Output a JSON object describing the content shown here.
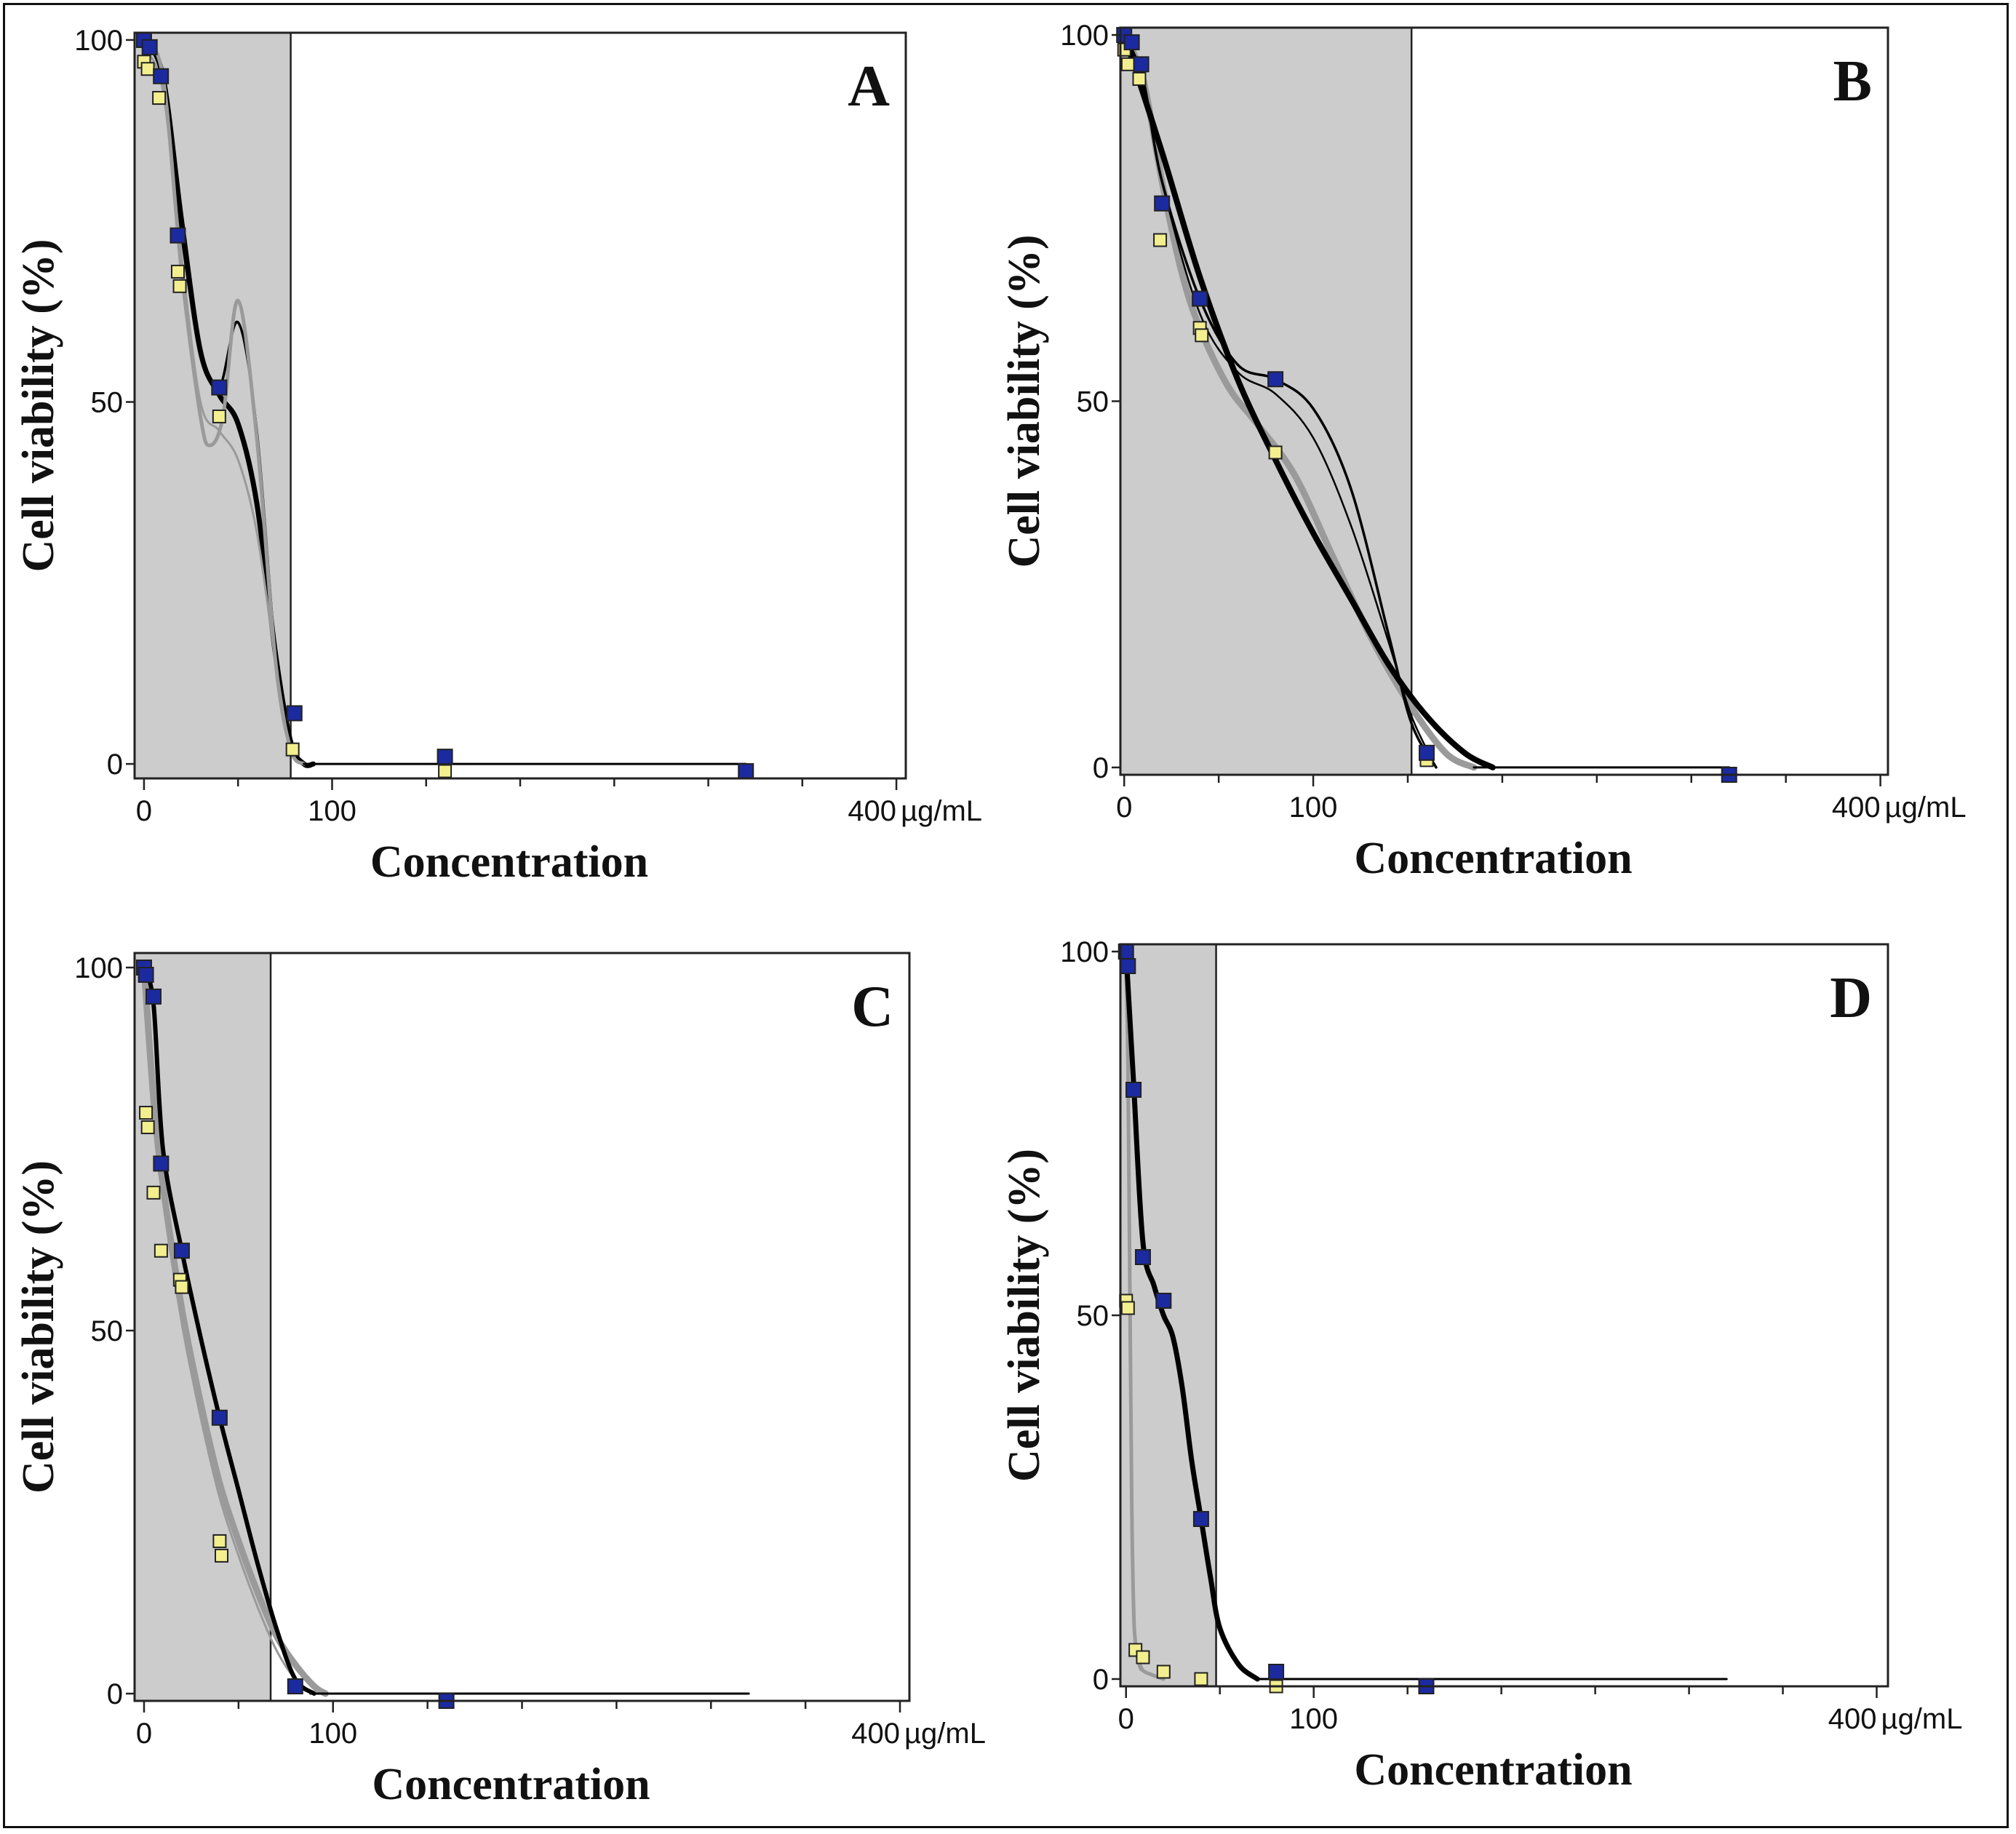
{
  "figure": {
    "unit_label": "µg/mL",
    "line_colors": {
      "dark": "#000000",
      "grey": "#9a9a9a"
    },
    "marker_colors": {
      "blue": "#1c2aa0",
      "yellow": "#f3ef8e"
    },
    "shade_color": "#cccccc"
  },
  "chart_data": [
    {
      "type": "scatter",
      "panel_label": "A",
      "xlabel": "Concentration",
      "ylabel": "Cell viability (%)",
      "xlim": [
        -5,
        405
      ],
      "ylim": [
        -2,
        101
      ],
      "x_ticks": [
        0,
        100,
        400
      ],
      "x_tick_labels": [
        "0",
        "100",
        "400"
      ],
      "y_ticks": [
        0,
        50,
        100
      ],
      "y_tick_labels": [
        "0",
        "50",
        "100"
      ],
      "shaded_region": [
        -5,
        78
      ],
      "series": [
        {
          "name": "blue",
          "x": [
            0,
            3,
            9,
            18,
            40,
            80,
            160,
            320
          ],
          "y": [
            100,
            99,
            95,
            73,
            52,
            7,
            1,
            -1
          ]
        },
        {
          "name": "yellow",
          "x": [
            0,
            2,
            8,
            18,
            19,
            40,
            79,
            160
          ],
          "y": [
            97,
            96,
            92,
            68,
            66,
            48,
            2,
            -1
          ]
        }
      ],
      "fits": [
        {
          "color": "dark",
          "width": 7,
          "x": [
            0,
            10,
            20,
            30,
            40,
            50,
            60,
            70,
            78,
            85,
            90
          ],
          "y": [
            100,
            95,
            75,
            57,
            51,
            47,
            36,
            15,
            3,
            0,
            0
          ]
        },
        {
          "color": "dark",
          "width": 3.5,
          "x": [
            0,
            10,
            20,
            30,
            40,
            50,
            60,
            70,
            78,
            85
          ],
          "y": [
            100,
            95,
            73,
            57,
            52,
            61,
            46,
            15,
            3,
            0
          ]
        },
        {
          "color": "grey",
          "width": 5,
          "x": [
            0,
            10,
            20,
            30,
            35,
            42,
            50,
            60,
            70,
            78,
            85
          ],
          "y": [
            100,
            95,
            68,
            48,
            44,
            48,
            64,
            45,
            14,
            2,
            0
          ]
        },
        {
          "color": "grey",
          "width": 3,
          "x": [
            0,
            10,
            20,
            30,
            40,
            50,
            60,
            70,
            78,
            85
          ],
          "y": [
            99,
            93,
            70,
            50,
            46,
            42,
            32,
            14,
            2,
            0
          ]
        },
        {
          "color": "dark",
          "width": 3,
          "x": [
            85,
            320
          ],
          "y": [
            0,
            0
          ]
        }
      ]
    },
    {
      "type": "scatter",
      "panel_label": "B",
      "xlabel": "Concentration",
      "ylabel": "Cell viability (%)",
      "xlim": [
        -2,
        404
      ],
      "ylim": [
        -1,
        101
      ],
      "x_ticks": [
        0,
        100,
        400
      ],
      "x_tick_labels": [
        "0",
        "100",
        "400"
      ],
      "y_ticks": [
        0,
        50,
        100
      ],
      "y_tick_labels": [
        "0",
        "50",
        "100"
      ],
      "shaded_region": [
        -2,
        152
      ],
      "series": [
        {
          "name": "blue",
          "x": [
            0,
            4,
            9,
            20,
            40,
            80,
            160,
            320
          ],
          "y": [
            100,
            99,
            96,
            77,
            64,
            53,
            2,
            -1
          ]
        },
        {
          "name": "yellow",
          "x": [
            0,
            2,
            8,
            19,
            40,
            41,
            80,
            160
          ],
          "y": [
            98,
            96,
            94,
            72,
            60,
            59,
            43,
            1
          ]
        }
      ],
      "fits": [
        {
          "color": "grey",
          "width": 9,
          "x": [
            0,
            10,
            20,
            30,
            40,
            55,
            70,
            90,
            110,
            130,
            150,
            170,
            185
          ],
          "y": [
            100,
            94,
            80,
            68,
            60,
            52,
            47,
            40,
            29,
            18,
            9,
            2,
            0
          ]
        },
        {
          "color": "dark",
          "width": 8,
          "x": [
            0,
            20,
            40,
            60,
            80,
            100,
            120,
            140,
            160,
            180,
            195
          ],
          "y": [
            100,
            84,
            67,
            53,
            42,
            32,
            23,
            14,
            7,
            2,
            0
          ]
        },
        {
          "color": "dark",
          "width": 3.5,
          "x": [
            0,
            10,
            20,
            40,
            60,
            80,
            100,
            120,
            140,
            152,
            165
          ],
          "y": [
            100,
            94,
            80,
            64,
            55,
            53,
            49,
            38,
            18,
            6,
            0
          ]
        },
        {
          "color": "dark",
          "width": 2.5,
          "x": [
            0,
            10,
            20,
            40,
            60,
            80,
            100,
            120,
            140,
            152,
            165
          ],
          "y": [
            100,
            94,
            80,
            62,
            54,
            51,
            45,
            33,
            17,
            7,
            0
          ]
        },
        {
          "color": "dark",
          "width": 3,
          "x": [
            185,
            320
          ],
          "y": [
            0,
            0
          ]
        }
      ]
    },
    {
      "type": "scatter",
      "panel_label": "C",
      "xlabel": "Concentration",
      "ylabel": "Cell viability (%)",
      "xlim": [
        -5,
        405
      ],
      "ylim": [
        -1,
        102
      ],
      "x_ticks": [
        0,
        100,
        400
      ],
      "x_tick_labels": [
        "0",
        "100",
        "400"
      ],
      "y_ticks": [
        0,
        50,
        100
      ],
      "y_tick_labels": [
        "0",
        "50",
        "100"
      ],
      "shaded_region": [
        -5,
        67
      ],
      "series": [
        {
          "name": "blue",
          "x": [
            0,
            1,
            5,
            9,
            20,
            40,
            80,
            160
          ],
          "y": [
            100,
            99,
            96,
            73,
            61,
            38,
            1,
            -1
          ]
        },
        {
          "name": "yellow",
          "x": [
            1,
            2,
            5,
            9,
            19,
            20,
            40,
            41
          ],
          "y": [
            80,
            78,
            69,
            61,
            57,
            56,
            21,
            19
          ]
        }
      ],
      "fits": [
        {
          "color": "grey",
          "width": 9,
          "x": [
            0,
            5,
            10,
            20,
            30,
            40,
            50,
            60,
            70,
            80,
            90,
            96
          ],
          "y": [
            100,
            82,
            70,
            53,
            40,
            29,
            21,
            14,
            8,
            4,
            1,
            0
          ]
        },
        {
          "color": "grey",
          "width": 3,
          "x": [
            0,
            5,
            10,
            20,
            30,
            40,
            50,
            60,
            70,
            80,
            90
          ],
          "y": [
            99,
            80,
            68,
            51,
            38,
            27,
            19,
            12,
            6,
            2,
            0
          ]
        },
        {
          "color": "dark",
          "width": 6,
          "x": [
            0,
            5,
            10,
            20,
            30,
            40,
            50,
            60,
            70,
            80,
            90
          ],
          "y": [
            100,
            95,
            75,
            61,
            49,
            38,
            28,
            18,
            9,
            2,
            0
          ]
        },
        {
          "color": "dark",
          "width": 3,
          "x": [
            88,
            320
          ],
          "y": [
            0,
            0
          ]
        }
      ]
    },
    {
      "type": "scatter",
      "panel_label": "D",
      "xlabel": "Concentration",
      "ylabel": "Cell viability (%)",
      "xlim": [
        -3,
        406
      ],
      "ylim": [
        -1,
        101
      ],
      "x_ticks": [
        0,
        100,
        400
      ],
      "x_tick_labels": [
        "0",
        "100",
        "400"
      ],
      "y_ticks": [
        0,
        50,
        100
      ],
      "y_tick_labels": [
        "0",
        "50",
        "100"
      ],
      "shaded_region": [
        -3,
        48
      ],
      "series": [
        {
          "name": "blue",
          "x": [
            0,
            1,
            4,
            9,
            20,
            40,
            80,
            160
          ],
          "y": [
            100,
            98,
            81,
            58,
            52,
            22,
            1,
            -1
          ]
        },
        {
          "name": "yellow",
          "x": [
            0,
            1,
            5,
            9,
            20,
            40,
            80,
            160
          ],
          "y": [
            52,
            51,
            4,
            3,
            1,
            0,
            -1,
            -1
          ]
        }
      ],
      "fits": [
        {
          "color": "grey",
          "width": 3,
          "x": [
            0,
            1,
            2,
            3,
            4,
            5,
            7,
            10,
            20
          ],
          "y": [
            100,
            90,
            60,
            30,
            12,
            6,
            3,
            1,
            0
          ]
        },
        {
          "color": "grey",
          "width": 5,
          "x": [
            0,
            1,
            2,
            3,
            4,
            5,
            7,
            10,
            20
          ],
          "y": [
            98,
            85,
            55,
            25,
            10,
            5,
            2,
            1,
            0
          ]
        },
        {
          "color": "dark",
          "width": 7,
          "x": [
            0,
            4,
            9,
            15,
            20,
            25,
            30,
            35,
            40,
            45,
            50,
            60,
            70
          ],
          "y": [
            100,
            82,
            60,
            54,
            50,
            47,
            40,
            30,
            22,
            14,
            7,
            2,
            0
          ]
        },
        {
          "color": "dark",
          "width": 3,
          "x": [
            70,
            320
          ],
          "y": [
            0,
            0
          ]
        }
      ]
    }
  ]
}
